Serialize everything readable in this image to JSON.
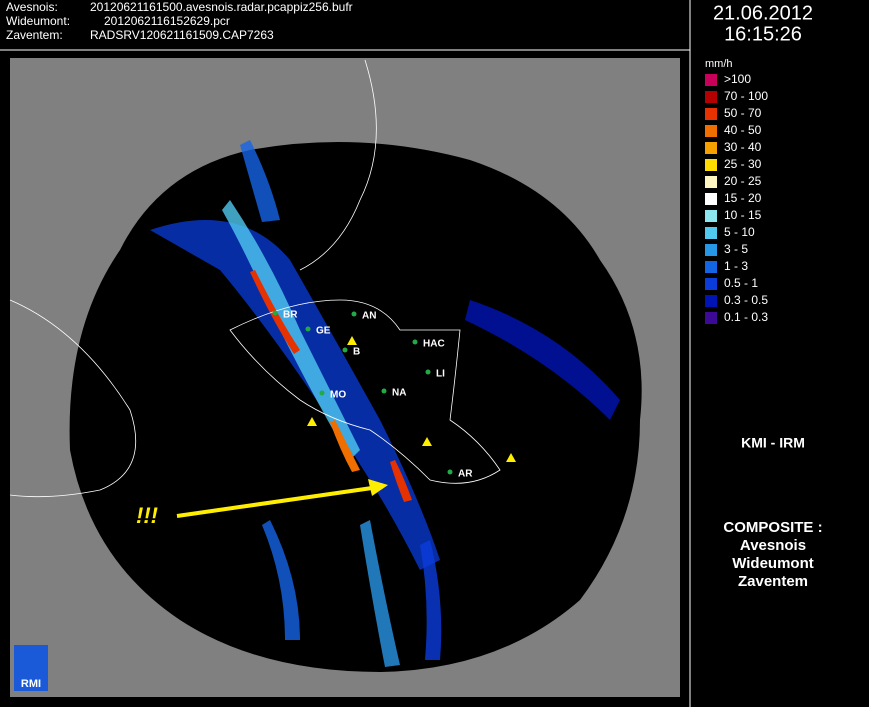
{
  "header": {
    "sources": [
      {
        "label": "Avesnois:",
        "file": "20120621161500.avesnois.radar.pcappiz256.bufr"
      },
      {
        "label": "Wideumont:",
        "file": "2012062116152629.pcr"
      },
      {
        "label": "Zaventem:",
        "file": "RADSRV120621161509.CAP7263"
      }
    ],
    "date": "21.06.2012",
    "time": "16:15:26"
  },
  "legend": {
    "unit": "mm/h",
    "items": [
      {
        "label": ">100",
        "color": "#c8005a"
      },
      {
        "label": "70 - 100",
        "color": "#b40000"
      },
      {
        "label": "50 - 70",
        "color": "#e63200"
      },
      {
        "label": "40 - 50",
        "color": "#f06e00"
      },
      {
        "label": "30 - 40",
        "color": "#f5a000"
      },
      {
        "label": "25 - 30",
        "color": "#ffdc00"
      },
      {
        "label": "20 - 25",
        "color": "#fff5c0"
      },
      {
        "label": "15 - 20",
        "color": "#ffffff"
      },
      {
        "label": "10 - 15",
        "color": "#8ce6f0"
      },
      {
        "label": "5 - 10",
        "color": "#50c8f0"
      },
      {
        "label": "3 - 5",
        "color": "#2896e6"
      },
      {
        "label": "1 - 3",
        "color": "#1464e6"
      },
      {
        "label": "0.5 - 1",
        "color": "#0a3cdc"
      },
      {
        "label": "0.3 - 0.5",
        "color": "#0014b4"
      },
      {
        "label": "0.1 - 0.3",
        "color": "#3c0a96"
      }
    ]
  },
  "map": {
    "cities": [
      "BR",
      "GE",
      "AN",
      "B",
      "HAC",
      "LI",
      "MO",
      "NA",
      "AR"
    ],
    "annotation": "!!!",
    "logo": "RMI"
  },
  "panel": {
    "organisation": "KMI - IRM",
    "composite": [
      "COMPOSITE :",
      "Avesnois",
      "Wideumont",
      "Zaventem"
    ]
  }
}
